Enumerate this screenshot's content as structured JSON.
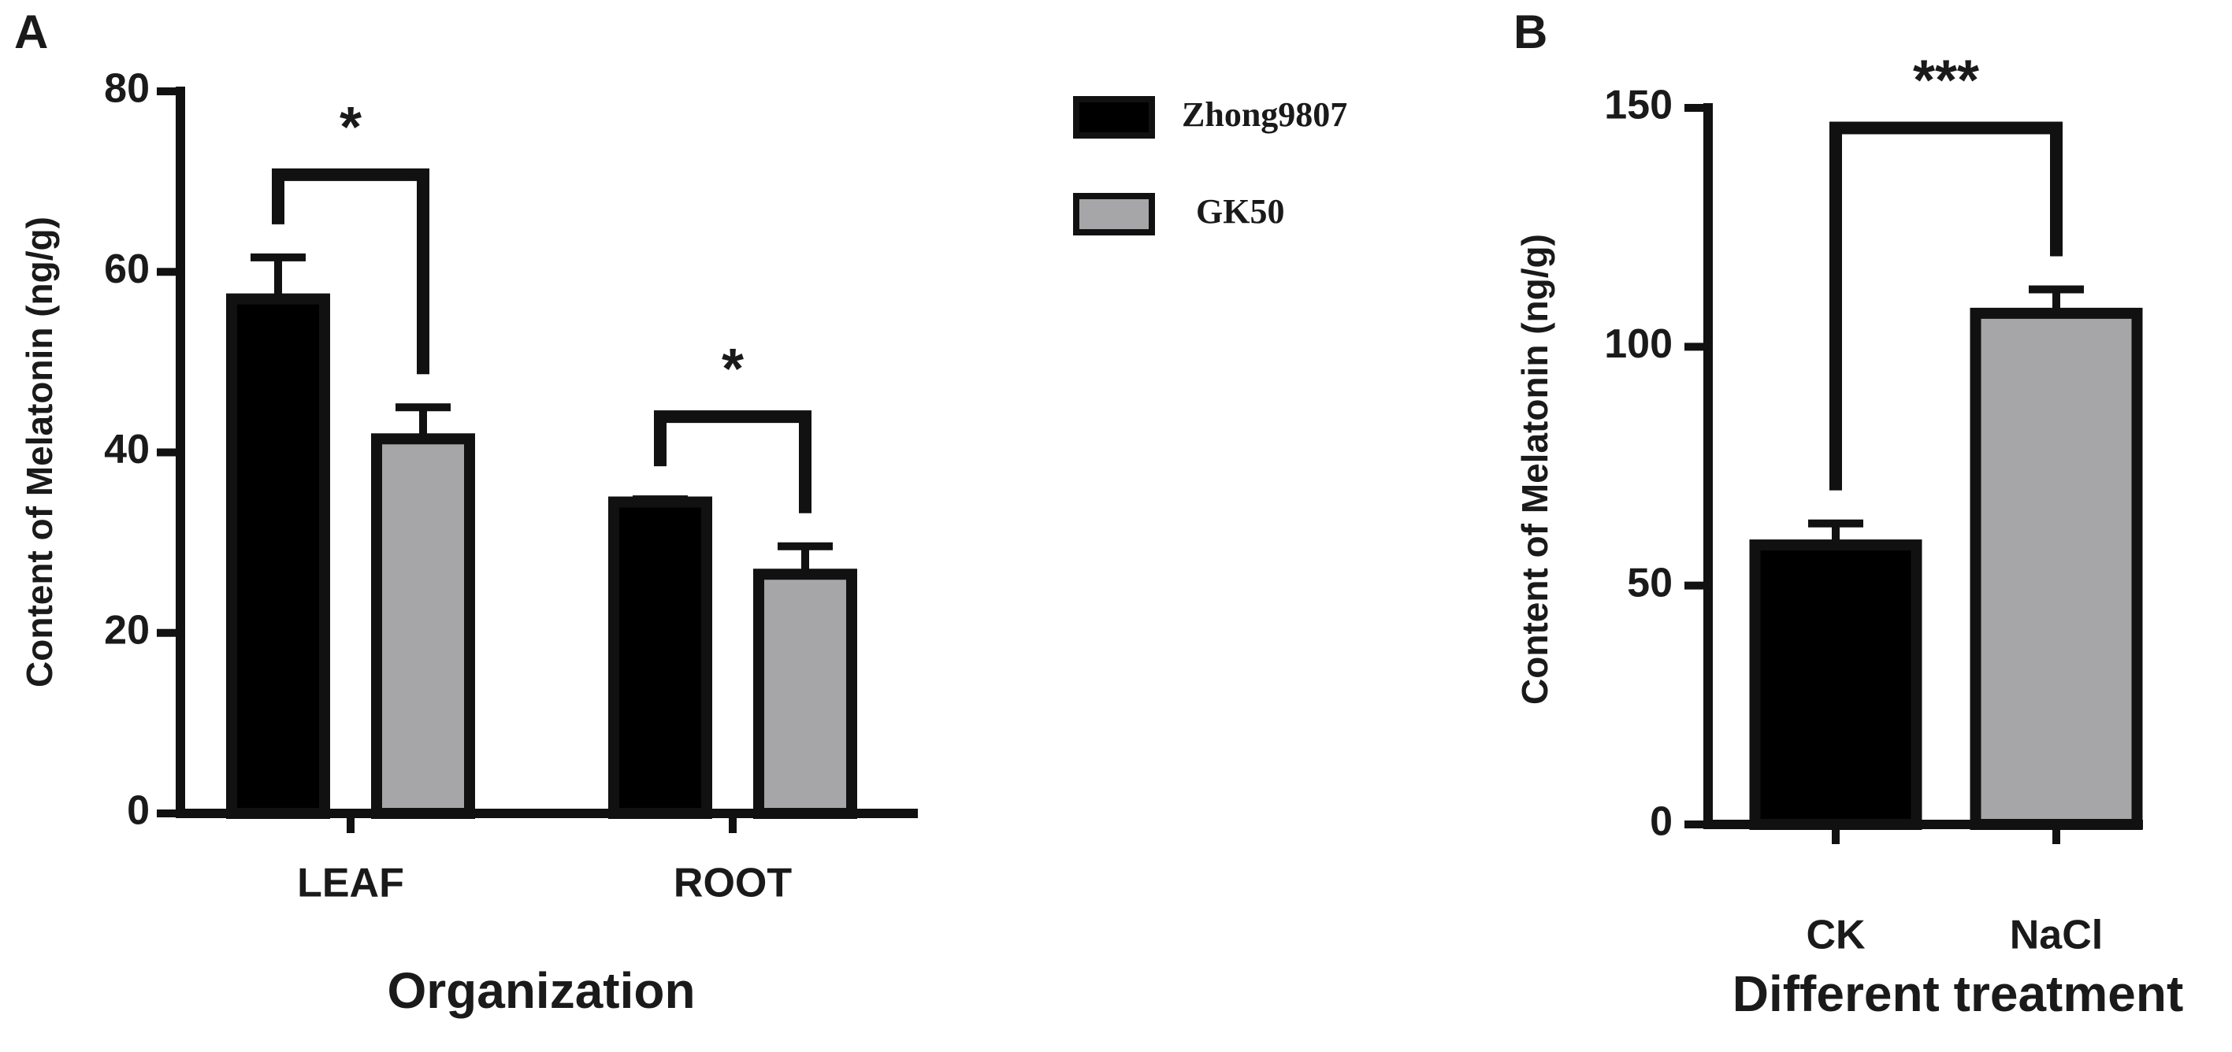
{
  "chart_data": [
    {
      "type": "bar",
      "panel_label": "A",
      "x_label": "Organization",
      "y_label": "Content of Melatonin (ng/g)",
      "categories": [
        "LEAF",
        "ROOT"
      ],
      "series": [
        {
          "name": "Zhong9807",
          "color": "#000000",
          "values": [
            57,
            34.5
          ],
          "errors": [
            4.6,
            0.3
          ]
        },
        {
          "name": "GK50",
          "color": "#a6a6a8",
          "values": [
            41.5,
            26.5
          ],
          "errors": [
            3.5,
            3.1
          ]
        }
      ],
      "significance": [
        "*",
        "*"
      ],
      "ylim": [
        0,
        80
      ],
      "yticks": [
        0,
        20,
        40,
        60,
        80
      ]
    },
    {
      "type": "bar",
      "panel_label": "B",
      "x_label": "Different treatment",
      "y_label": "Content of Melatonin (ng/g)",
      "categories": [
        "CK",
        "NaCl"
      ],
      "values": [
        58.5,
        107
      ],
      "errors": [
        4.5,
        5
      ],
      "colors": [
        "#000000",
        "#a6a6a8"
      ],
      "significance": "***",
      "ylim": [
        0,
        150
      ],
      "yticks": [
        0,
        50,
        100,
        150
      ]
    }
  ]
}
